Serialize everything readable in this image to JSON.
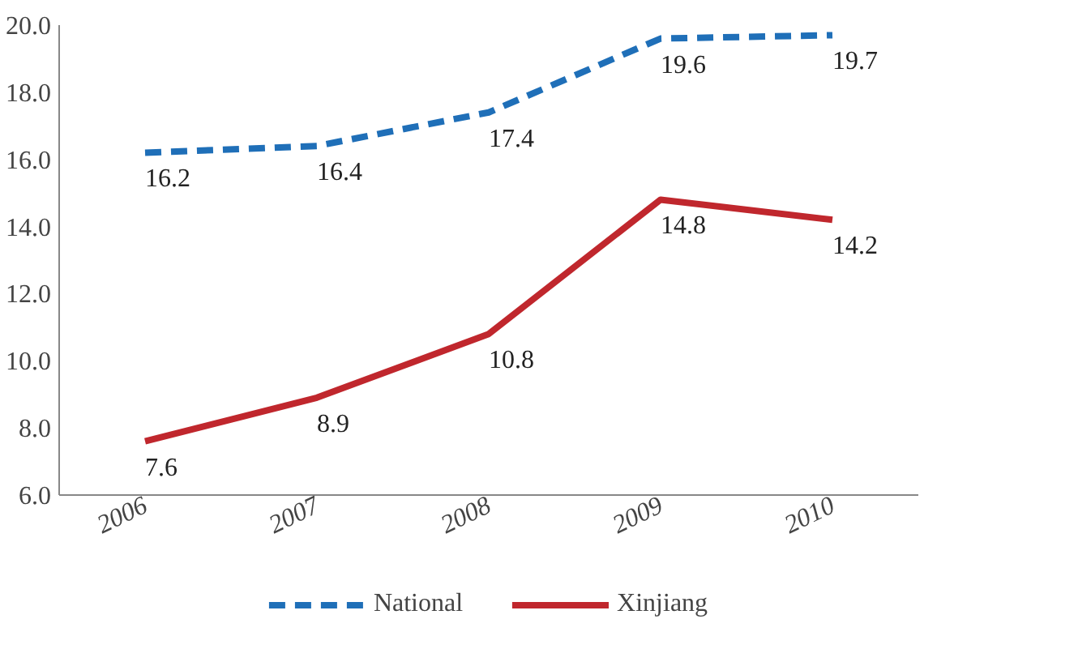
{
  "chart_data": {
    "type": "line",
    "categories": [
      "2006",
      "2007",
      "2008",
      "2009",
      "2010"
    ],
    "ylim": [
      6,
      20
    ],
    "yticks": [
      {
        "value": 6,
        "label": "6.0"
      },
      {
        "value": 8,
        "label": "8.0"
      },
      {
        "value": 10,
        "label": "10.0"
      },
      {
        "value": 12,
        "label": "12.0"
      },
      {
        "value": 14,
        "label": "14.0"
      },
      {
        "value": 16,
        "label": "16.0"
      },
      {
        "value": 18,
        "label": "18.0"
      },
      {
        "value": 20,
        "label": "20.0"
      }
    ],
    "series": [
      {
        "name": "National",
        "color": "#1f6fb8",
        "line_style": "dashed",
        "values": [
          16.2,
          16.4,
          17.4,
          19.6,
          19.7
        ]
      },
      {
        "name": "Xinjiang",
        "color": "#c0272d",
        "line_style": "solid",
        "values": [
          7.6,
          8.9,
          10.8,
          14.8,
          14.2
        ]
      }
    ],
    "data_labels": true,
    "legend": "bottom"
  }
}
